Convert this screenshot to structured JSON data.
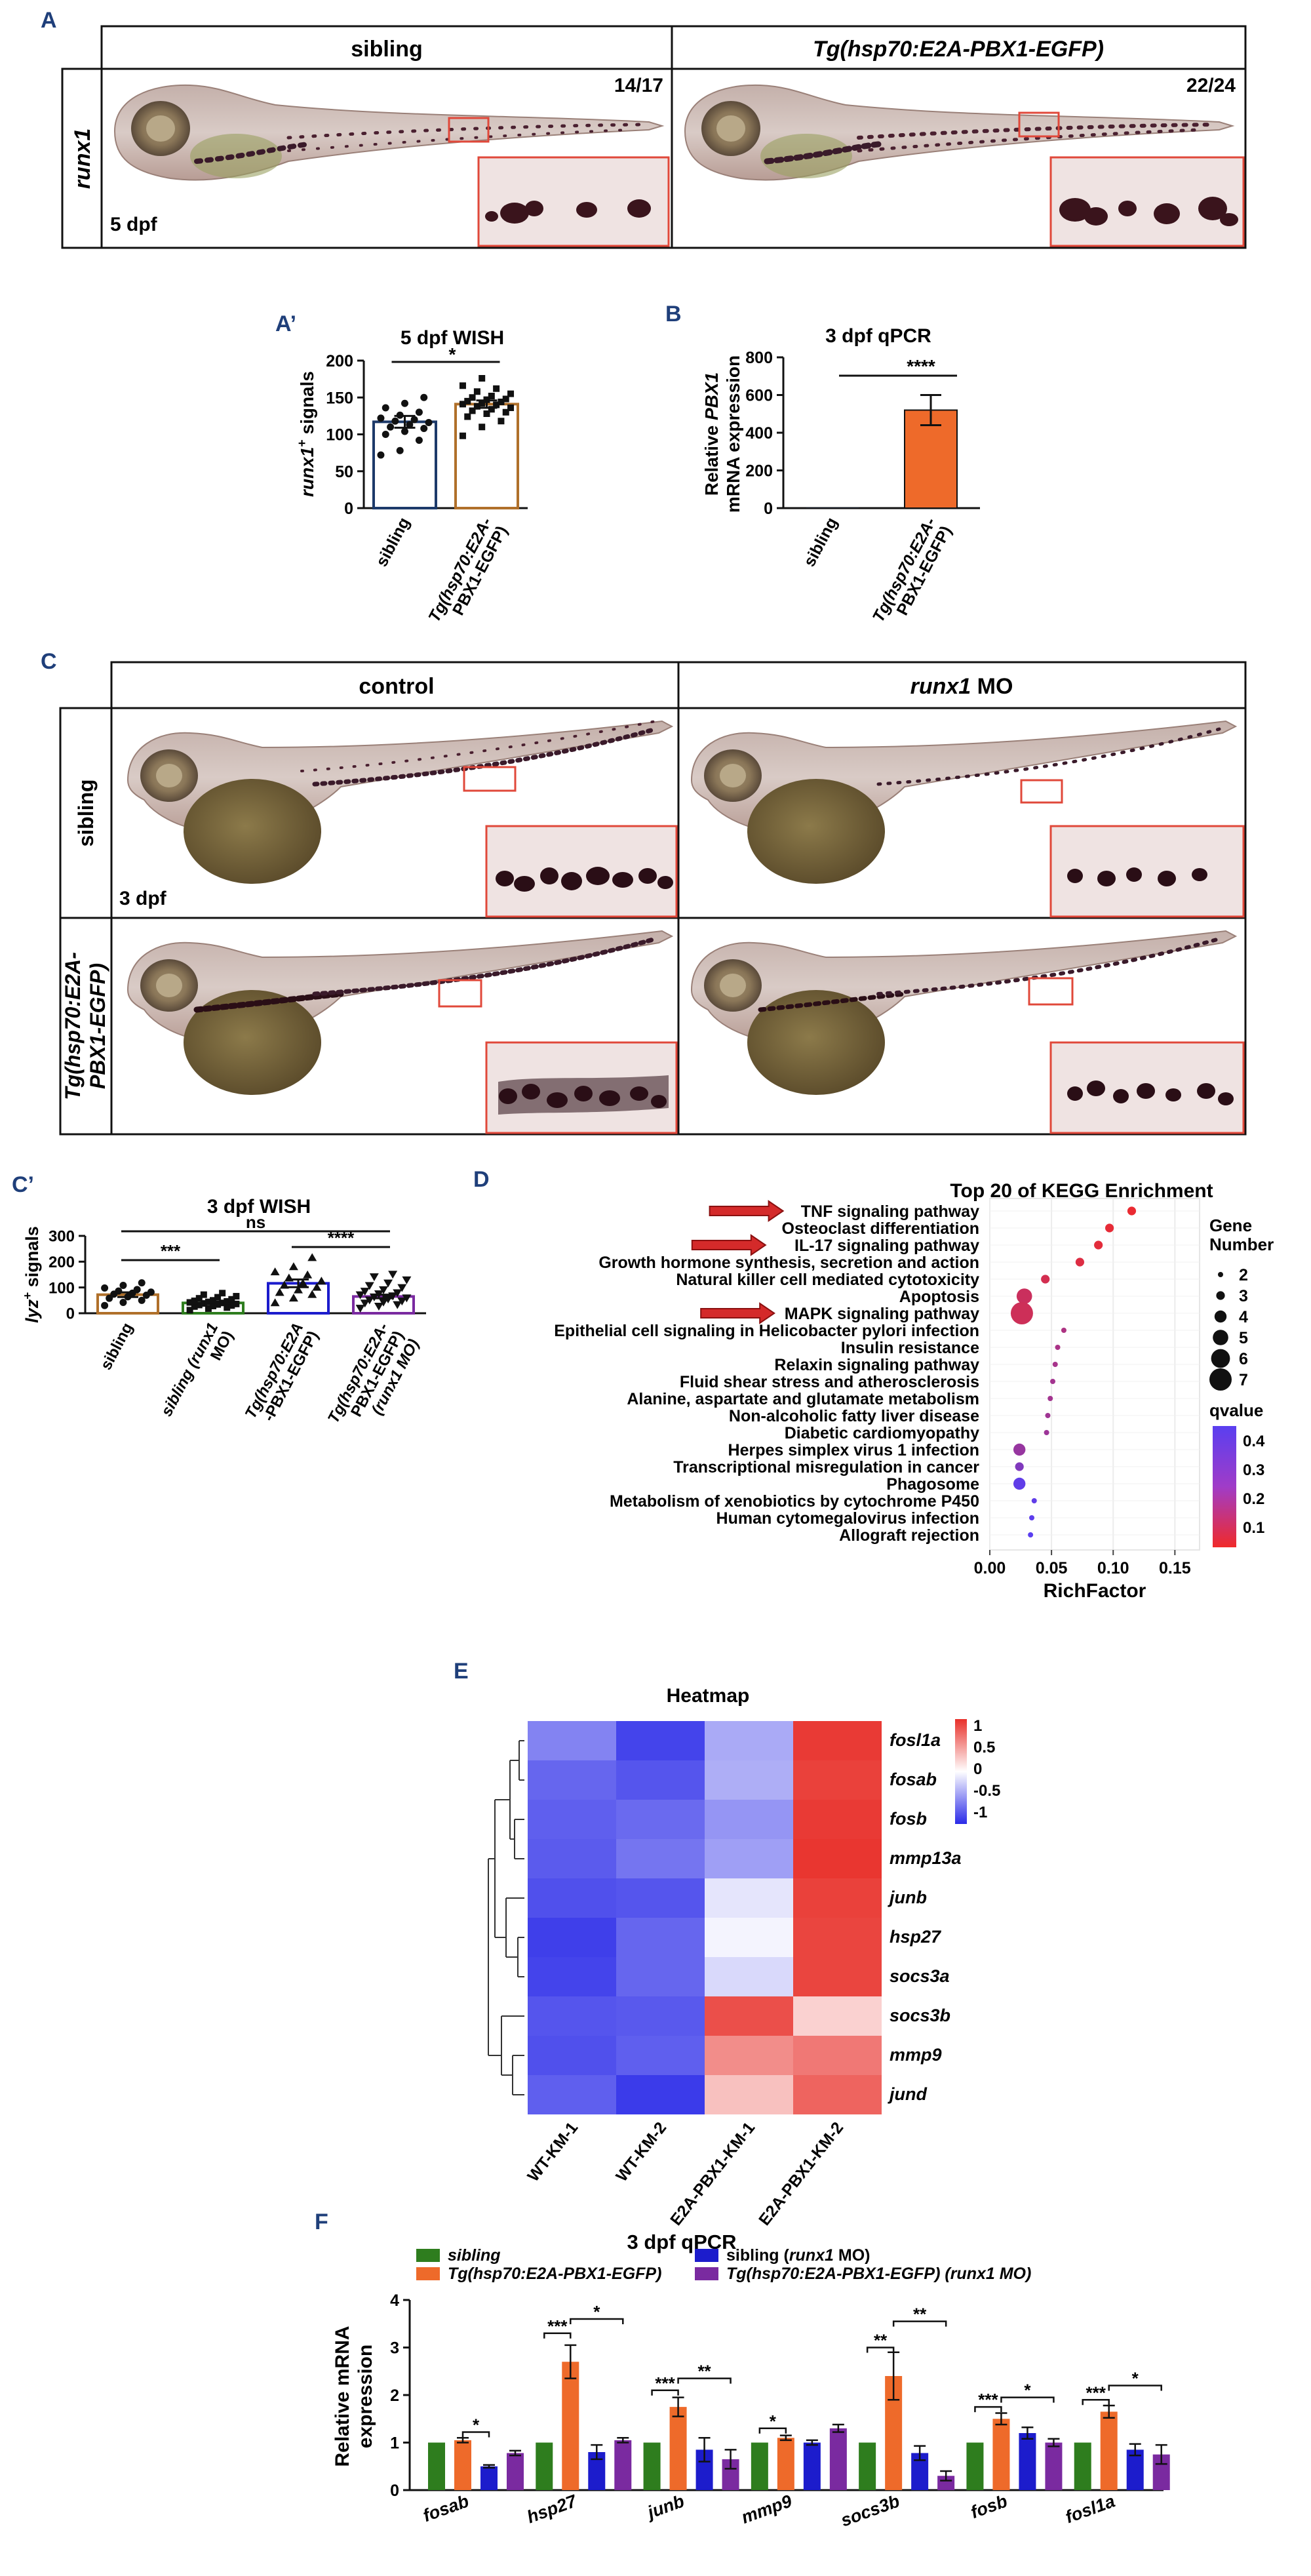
{
  "panel_labels": {
    "a": "A",
    "a2": "A’",
    "b": "B",
    "c": "C",
    "c2": "C’",
    "d": "D",
    "e": "E",
    "f": "F"
  },
  "colors": {
    "label": "#1f3f7a",
    "orange": "#ee6a2a",
    "green": "#2e7d1e",
    "blue": "#1c1ccc",
    "purple": "#7a2aa0",
    "navy": "#1d3a6a",
    "brown": "#b0702a",
    "red_box": "#e0483a"
  },
  "panelA": {
    "col_sibling": "sibling",
    "col_tg": "Tg(hsp70:E2A-PBX1-EGFP)",
    "row_label": "runx1",
    "stage": "5 dpf",
    "count_sibling": "14/17",
    "count_tg": "22/24"
  },
  "panelA2": {
    "title": "5 dpf WISH",
    "ylabel_italic": "runx1",
    "ylabel_sup": "+",
    "ylabel_rest": " signals",
    "sig": "*"
  },
  "panelB": {
    "title": "3 dpf qPCR",
    "ylabel1": "Relative ",
    "ylabel1_it": "PBX1",
    "ylabel2": "mRNA expression",
    "sig": "****"
  },
  "panelC": {
    "col_control": "control",
    "col_mo_it": "runx1",
    "col_mo_rest": " MO",
    "row_sibling": "sibling",
    "row_tg1": "Tg(hsp70:E2A-",
    "row_tg2": "PBX1-EGFP)",
    "stage": "3 dpf"
  },
  "panelC2": {
    "title": "3 dpf WISH",
    "ylabel_italic": "lyz",
    "ylabel_sup": "+",
    "ylabel_rest": " signals",
    "sig_ns": "ns",
    "sig_a": "***",
    "sig_b": "****"
  },
  "panelE": {
    "title": "Heatmap",
    "legend_ticks": [
      "1",
      "0.5",
      "0",
      "-0.5",
      "-1"
    ]
  },
  "panelF": {
    "title": "3 dpf qPCR",
    "ylabel1": "Relative mRNA",
    "ylabel2": "expression",
    "legend": [
      {
        "label": "sibling",
        "italic": true
      },
      {
        "label": "Tg(hsp70:E2A-PBX1-EGFP)",
        "italic": true
      },
      {
        "label": "sibling (runx1 MO)",
        "italic": false
      },
      {
        "label": "Tg(hsp70:E2A-PBX1-EGFP) (runx1 MO)",
        "italic": true
      }
    ]
  },
  "chart_data": [
    {
      "id": "A2",
      "type": "bar",
      "title": "5 dpf WISH",
      "ylabel": "runx1+ signals",
      "ylim": [
        0,
        200
      ],
      "yticks": [
        0,
        50,
        100,
        150,
        200
      ],
      "categories": [
        "sibling",
        "Tg(hsp70:E2A-PBX1-EGFP)"
      ],
      "category_lines": [
        [
          "sibling"
        ],
        [
          "Tg(hsp70:E2A-",
          "PBX1-EGFP)"
        ]
      ],
      "values": [
        117,
        141
      ],
      "errors": [
        8,
        5
      ],
      "colors": [
        "#1d3a6a",
        "#b0702a"
      ],
      "points": [
        [
          72,
          78,
          92,
          100,
          104,
          108,
          110,
          113,
          116,
          118,
          120,
          122,
          126,
          130,
          136,
          142,
          150
        ],
        [
          98,
          110,
          118,
          124,
          128,
          130,
          132,
          134,
          136,
          138,
          140,
          141,
          142,
          144,
          145,
          147,
          148,
          150,
          152,
          155,
          158,
          162,
          166,
          176
        ]
      ],
      "significance": [
        {
          "from": 0,
          "to": 1,
          "label": "*"
        }
      ]
    },
    {
      "id": "B",
      "type": "bar",
      "title": "3 dpf qPCR",
      "ylabel": "Relative PBX1 mRNA expression",
      "ylim": [
        0,
        800
      ],
      "yticks": [
        0,
        200,
        400,
        600,
        800
      ],
      "categories": [
        "sibling",
        "Tg(hsp70:E2A-PBX1-EGFP)"
      ],
      "category_lines": [
        [
          "sibling"
        ],
        [
          "Tg(hsp70:E2A-",
          "PBX1-EGFP)"
        ]
      ],
      "values": [
        1,
        520
      ],
      "errors": [
        0,
        80
      ],
      "colors": [
        "#1d3a6a",
        "#ee6a2a"
      ],
      "significance": [
        {
          "from": 0,
          "to": 1,
          "label": "****"
        }
      ]
    },
    {
      "id": "C2",
      "type": "bar",
      "title": "3 dpf WISH",
      "ylabel": "lyz+ signals",
      "ylim": [
        0,
        300
      ],
      "yticks": [
        0,
        100,
        200,
        300
      ],
      "categories": [
        "sibling",
        "sibling (runx1 MO)",
        "Tg(hsp70:E2A-PBX1-EGFP)",
        "Tg(hsp70:E2A-PBX1-EGFP) (runx1 MO)"
      ],
      "category_lines": [
        [
          "sibling"
        ],
        [
          "sibling (runx1",
          "MO)"
        ],
        [
          "Tg(hsp70:E2A",
          "-PBX1-EGFP)"
        ],
        [
          "Tg(hsp70:E2A-",
          "PBX1-EGFP)",
          "(runx1 MO)"
        ]
      ],
      "values": [
        72,
        40,
        116,
        65
      ],
      "errors": [
        9,
        5,
        15,
        7
      ],
      "colors": [
        "#b0702a",
        "#2e7d1e",
        "#1c1ccc",
        "#7a2aa0"
      ],
      "points": [
        [
          30,
          42,
          50,
          58,
          64,
          70,
          74,
          78,
          82,
          86,
          92,
          98,
          108,
          118
        ],
        [
          12,
          18,
          22,
          26,
          28,
          30,
          32,
          34,
          36,
          38,
          40,
          42,
          44,
          46,
          48,
          50,
          54,
          58,
          62,
          66,
          72,
          78
        ],
        [
          40,
          58,
          72,
          80,
          90,
          100,
          108,
          116,
          124,
          136,
          148,
          160,
          180,
          215
        ],
        [
          20,
          28,
          34,
          40,
          44,
          48,
          52,
          56,
          60,
          64,
          68,
          72,
          76,
          80,
          86,
          92,
          100,
          108,
          118,
          130,
          142,
          152
        ]
      ],
      "significance": [
        {
          "from": 0,
          "to": 3,
          "label": "ns",
          "level": 3
        },
        {
          "from": 0,
          "to": 1,
          "label": "***",
          "level": 1
        },
        {
          "from": 2,
          "to": 3,
          "label": "****",
          "level": 2
        }
      ]
    },
    {
      "id": "D",
      "type": "scatter",
      "title": "Top 20 of KEGG Enrichment",
      "xlabel": "RichFactor",
      "xlim": [
        0.0,
        0.17
      ],
      "xticks": [
        "0.00",
        "0.05",
        "0.10",
        "0.15"
      ],
      "size_legend_title": [
        "Gene",
        "Number"
      ],
      "size_legend": [
        2,
        3,
        4,
        5,
        6,
        7
      ],
      "color_legend_title": "qvalue",
      "color_ticks": [
        "0.4",
        "0.3",
        "0.2",
        "0.1"
      ],
      "pathways": [
        {
          "name": "TNF signaling pathway",
          "rich": 0.115,
          "count": 3,
          "q": 0.02,
          "arrow": true
        },
        {
          "name": "Osteoclast differentiation",
          "rich": 0.097,
          "count": 3,
          "q": 0.03
        },
        {
          "name": "IL-17 signaling pathway",
          "rich": 0.088,
          "count": 3,
          "q": 0.04,
          "arrow": true
        },
        {
          "name": "Growth hormone synthesis, secretion and action",
          "rich": 0.073,
          "count": 3,
          "q": 0.06
        },
        {
          "name": "Natural killer cell mediated cytotoxicity",
          "rich": 0.045,
          "count": 3,
          "q": 0.09
        },
        {
          "name": "Apoptosis",
          "rich": 0.028,
          "count": 5,
          "q": 0.12
        },
        {
          "name": "MAPK signaling pathway",
          "rich": 0.026,
          "count": 7,
          "q": 0.11,
          "arrow": true
        },
        {
          "name": "Epithelial cell signaling in Helicobacter pylori infection",
          "rich": 0.06,
          "count": 2,
          "q": 0.21
        },
        {
          "name": "Insulin resistance",
          "rich": 0.055,
          "count": 2,
          "q": 0.22
        },
        {
          "name": "Relaxin signaling pathway",
          "rich": 0.053,
          "count": 2,
          "q": 0.23
        },
        {
          "name": "Fluid shear stress and atherosclerosis",
          "rich": 0.051,
          "count": 2,
          "q": 0.24
        },
        {
          "name": "Alanine, aspartate and glutamate metabolism",
          "rich": 0.049,
          "count": 2,
          "q": 0.24
        },
        {
          "name": "Non-alcoholic fatty liver disease",
          "rich": 0.047,
          "count": 2,
          "q": 0.25
        },
        {
          "name": "Diabetic cardiomyopathy",
          "rich": 0.046,
          "count": 2,
          "q": 0.26
        },
        {
          "name": "Herpes simplex virus 1 infection",
          "rich": 0.024,
          "count": 4,
          "q": 0.28
        },
        {
          "name": "Transcriptional misregulation in cancer",
          "rich": 0.024,
          "count": 3,
          "q": 0.35
        },
        {
          "name": "Phagosome",
          "rich": 0.024,
          "count": 4,
          "q": 0.45
        },
        {
          "name": "Metabolism of xenobiotics by cytochrome P450",
          "rich": 0.036,
          "count": 2,
          "q": 0.45
        },
        {
          "name": "Human cytomegalovirus infection",
          "rich": 0.034,
          "count": 2,
          "q": 0.46
        },
        {
          "name": "Allograft rejection",
          "rich": 0.033,
          "count": 2,
          "q": 0.47
        }
      ]
    },
    {
      "id": "E",
      "type": "heatmap",
      "title": "Heatmap",
      "samples": [
        "WT-KM-1",
        "WT-KM-2",
        "E2A-PBX1-KM-1",
        "E2A-PBX1-KM-2"
      ],
      "genes": [
        "fosl1a",
        "fosab",
        "fosb",
        "mmp13a",
        "junb",
        "hsp27",
        "socs3a",
        "socs3b",
        "mmp9",
        "jund"
      ],
      "values": [
        [
          -0.58,
          -0.88,
          -0.4,
          0.95
        ],
        [
          -0.72,
          -0.8,
          -0.38,
          0.92
        ],
        [
          -0.75,
          -0.7,
          -0.5,
          0.95
        ],
        [
          -0.77,
          -0.65,
          -0.45,
          0.97
        ],
        [
          -0.82,
          -0.8,
          -0.12,
          0.92
        ],
        [
          -0.9,
          -0.72,
          -0.05,
          0.9
        ],
        [
          -0.88,
          -0.72,
          -0.18,
          0.9
        ],
        [
          -0.8,
          -0.78,
          0.85,
          0.22
        ],
        [
          -0.82,
          -0.75,
          0.55,
          0.65
        ],
        [
          -0.75,
          -0.92,
          0.3,
          0.75
        ]
      ],
      "colorbar_range": [
        -1,
        1
      ]
    },
    {
      "id": "F",
      "type": "bar",
      "title": "3 dpf qPCR",
      "ylabel": "Relative mRNA expression",
      "ylim": [
        0,
        4
      ],
      "yticks": [
        0,
        1,
        2,
        3,
        4
      ],
      "categories": [
        "fosab",
        "hsp27",
        "junb",
        "mmp9",
        "socs3b",
        "fosb",
        "fosl1a"
      ],
      "series": [
        {
          "name": "sibling",
          "color": "#2e7d1e",
          "values": [
            1.0,
            1.0,
            1.0,
            1.0,
            1.0,
            1.0,
            1.0
          ],
          "errors": [
            0,
            0,
            0,
            0,
            0,
            0,
            0
          ]
        },
        {
          "name": "Tg(hsp70:E2A-PBX1-EGFP)",
          "color": "#ee6a2a",
          "values": [
            1.05,
            2.7,
            1.75,
            1.1,
            2.4,
            1.5,
            1.65
          ],
          "errors": [
            0.05,
            0.35,
            0.2,
            0.05,
            0.5,
            0.12,
            0.13
          ]
        },
        {
          "name": "sibling (runx1 MO)",
          "color": "#1c1ccc",
          "values": [
            0.5,
            0.8,
            0.85,
            1.0,
            0.78,
            1.2,
            0.85
          ],
          "errors": [
            0.03,
            0.15,
            0.25,
            0.05,
            0.15,
            0.12,
            0.12
          ]
        },
        {
          "name": "Tg(hsp70:E2A-PBX1-EGFP) (runx1 MO)",
          "color": "#7a2aa0",
          "values": [
            0.78,
            1.05,
            0.65,
            1.3,
            0.3,
            1.0,
            0.75
          ],
          "errors": [
            0.05,
            0.05,
            0.2,
            0.08,
            0.1,
            0.08,
            0.2
          ]
        }
      ],
      "significance": [
        {
          "cat": 0,
          "from": 1,
          "to": 2,
          "label": "*",
          "y": 1.22
        },
        {
          "cat": 1,
          "from": 0,
          "to": 1,
          "label": "***",
          "y": 3.3
        },
        {
          "cat": 1,
          "from": 1,
          "to": 3,
          "label": "*",
          "y": 3.6
        },
        {
          "cat": 2,
          "from": 0,
          "to": 1,
          "label": "***",
          "y": 2.1
        },
        {
          "cat": 2,
          "from": 1,
          "to": 3,
          "label": "**",
          "y": 2.35
        },
        {
          "cat": 3,
          "from": 0,
          "to": 1,
          "label": "*",
          "y": 1.3
        },
        {
          "cat": 4,
          "from": 0,
          "to": 1,
          "label": "**",
          "y": 3.0
        },
        {
          "cat": 4,
          "from": 1,
          "to": 3,
          "label": "**",
          "y": 3.55
        },
        {
          "cat": 5,
          "from": 0,
          "to": 1,
          "label": "***",
          "y": 1.75
        },
        {
          "cat": 5,
          "from": 1,
          "to": 3,
          "label": "*",
          "y": 1.95
        },
        {
          "cat": 6,
          "from": 0,
          "to": 1,
          "label": "***",
          "y": 1.9
        },
        {
          "cat": 6,
          "from": 1,
          "to": 3,
          "label": "*",
          "y": 2.2
        }
      ]
    }
  ]
}
